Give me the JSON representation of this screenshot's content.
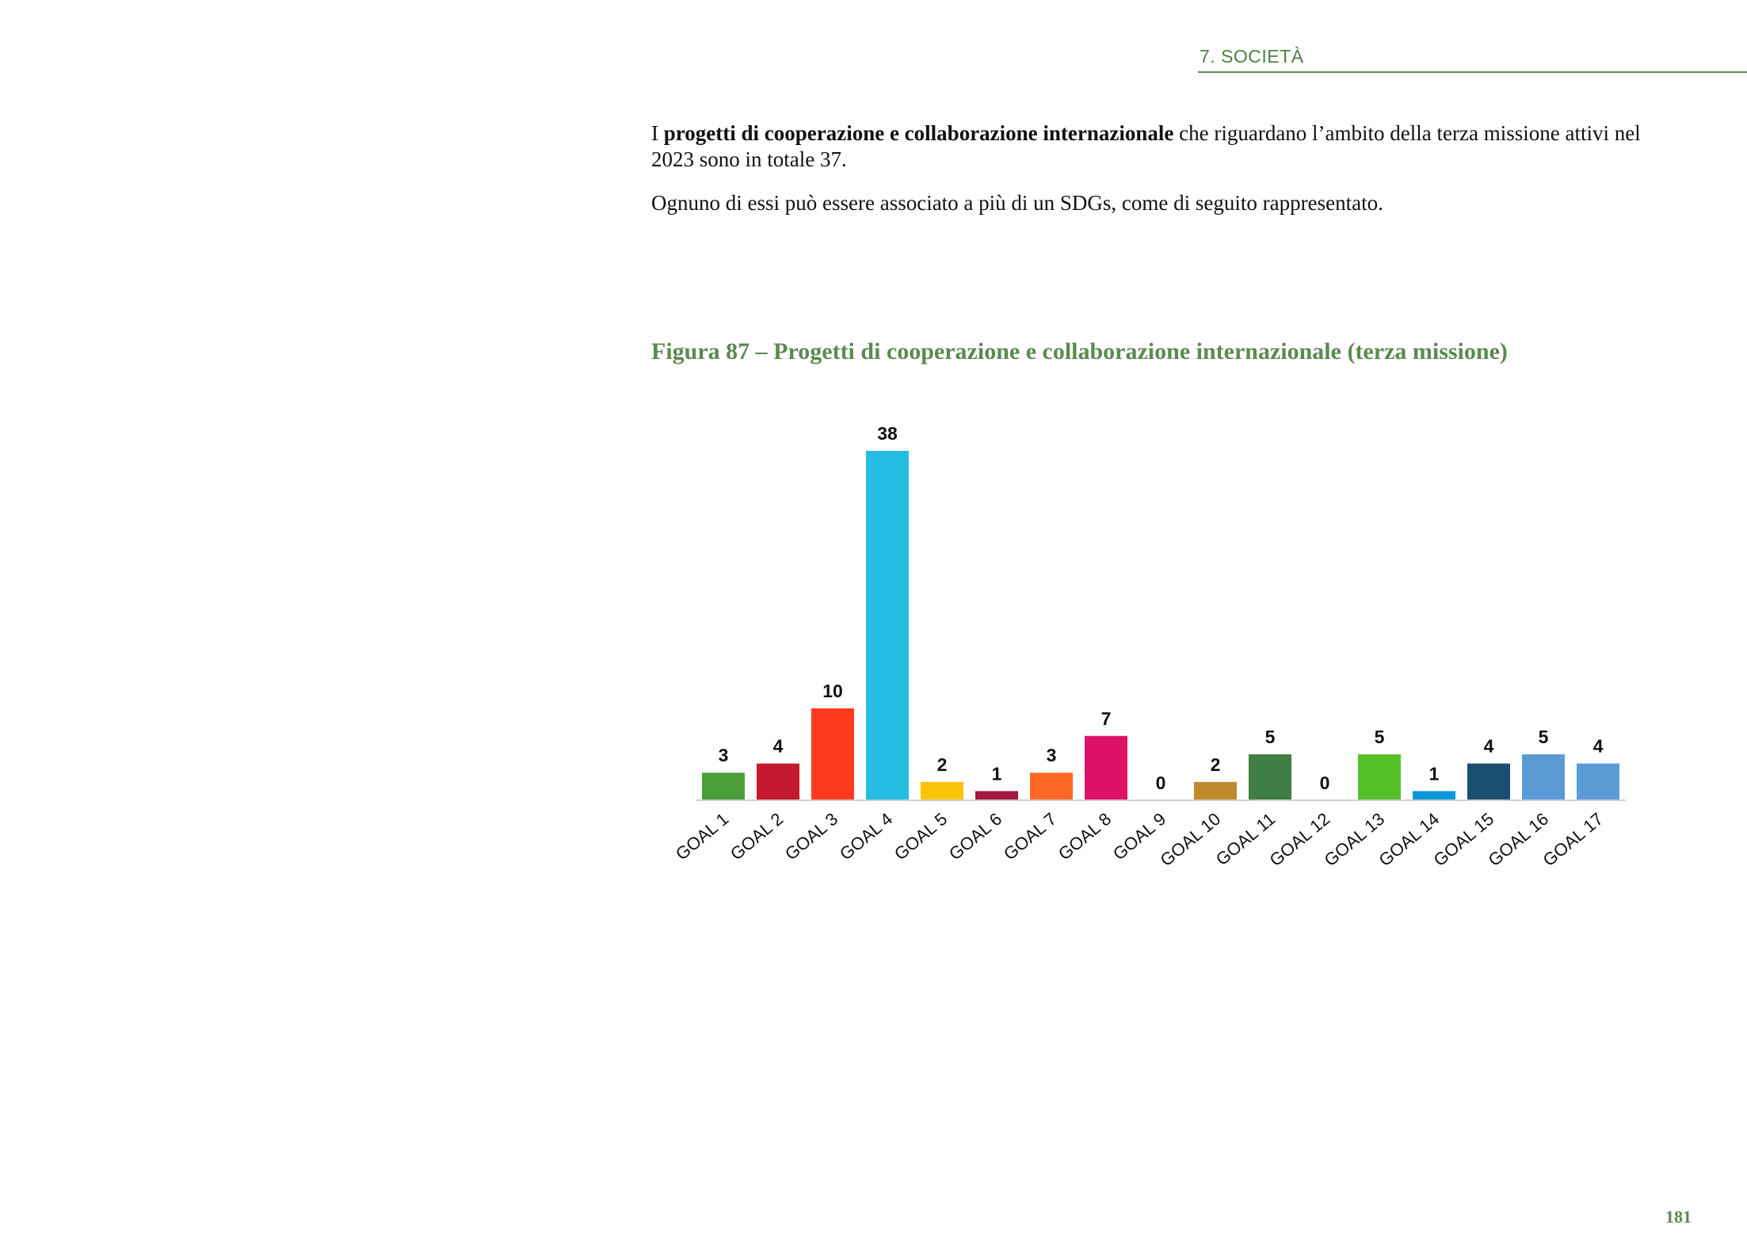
{
  "header": {
    "section": "7. SOCIETÀ"
  },
  "body": {
    "p1_pre": "I ",
    "p1_bold": "progetti di cooperazione e collaborazione internazionale",
    "p1_post": " che riguardano l’ambito della terza missione attivi nel 2023 sono in totale 37.",
    "p2": "Ognuno di essi può essere associato a più di un SDGs, come di seguito rappresentato."
  },
  "figure": {
    "caption": "Figura 87 – Progetti di cooperazione e collaborazione internazionale (terza missione)"
  },
  "chart_data": {
    "type": "bar",
    "title": "",
    "xlabel": "",
    "ylabel": "",
    "categories": [
      "GOAL 1",
      "GOAL 2",
      "GOAL 3",
      "GOAL 4",
      "GOAL 5",
      "GOAL 6",
      "GOAL 7",
      "GOAL 8",
      "GOAL 9",
      "GOAL 10",
      "GOAL 11",
      "GOAL 12",
      "GOAL 13",
      "GOAL 14",
      "GOAL 15",
      "GOAL 16",
      "GOAL 17"
    ],
    "values": [
      3,
      4,
      10,
      38,
      2,
      1,
      3,
      7,
      0,
      2,
      5,
      0,
      5,
      1,
      4,
      5,
      4
    ],
    "colors": [
      "#4c9f38",
      "#c5192d",
      "#ff3a21",
      "#26bde2",
      "#fcc30b",
      "#a21942",
      "#fd6925",
      "#dd1367",
      "#fd9d24",
      "#bf8b2e",
      "#3f7e44",
      "#bf8b2e",
      "#56c02b",
      "#0a97d9",
      "#1b4f72",
      "#5b9bd5",
      "#5b9bd5"
    ],
    "grid": false,
    "legend": "none",
    "data_labels": true
  },
  "footer": {
    "page_number": "181"
  }
}
